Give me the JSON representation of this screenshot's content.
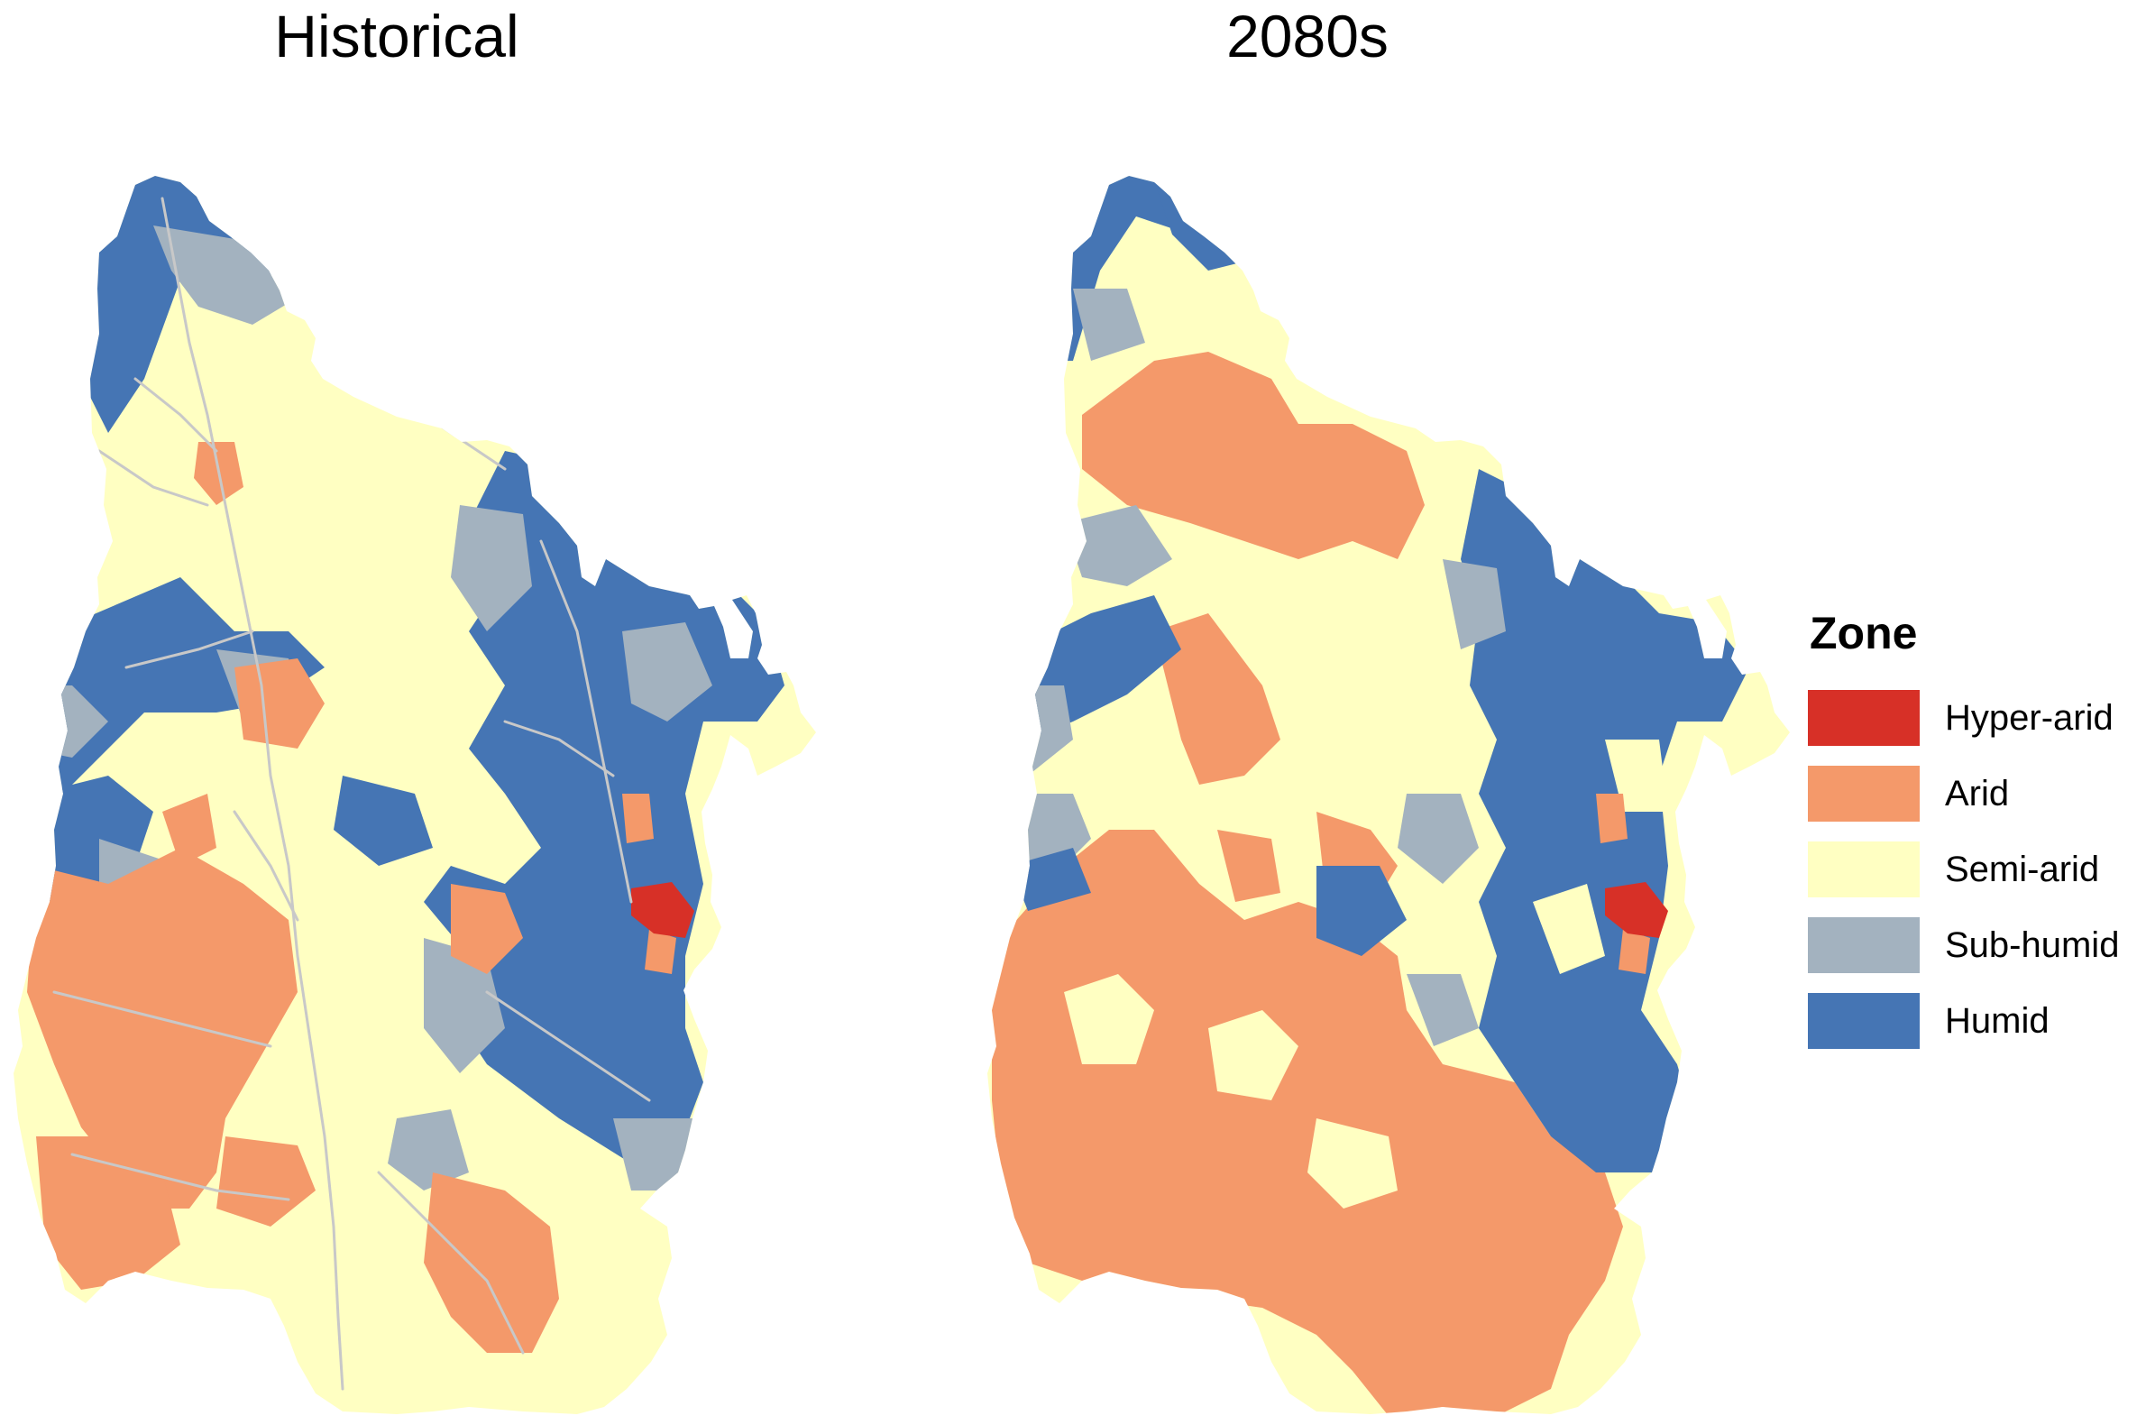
{
  "panels": [
    {
      "title": "Historical"
    },
    {
      "title": "2080s"
    }
  ],
  "legend": {
    "title": "Zone",
    "items": [
      {
        "label": "Hyper-arid",
        "color": "#d73027"
      },
      {
        "label": "Arid",
        "color": "#f4996a"
      },
      {
        "label": "Semi-arid",
        "color": "#ffffc2"
      },
      {
        "label": "Sub-humid",
        "color": "#a3b2bf"
      },
      {
        "label": "Humid",
        "color": "#4575b4"
      }
    ]
  },
  "river_color": "#c8c8c8"
}
